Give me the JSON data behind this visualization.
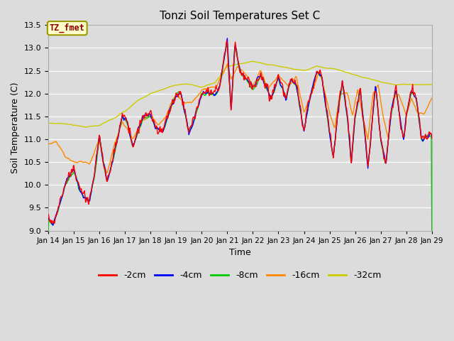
{
  "title": "Tonzi Soil Temperatures Set C",
  "xlabel": "Time",
  "ylabel": "Soil Temperature (C)",
  "ylim": [
    9.0,
    13.5
  ],
  "annotation_text": "TZ_fmet",
  "annotation_color": "#8B0000",
  "annotation_bg": "#FFFFCC",
  "annotation_border": "#999900",
  "xtick_labels": [
    "Jan 14",
    "Jan 15",
    "Jan 16",
    "Jan 17",
    "Jan 18",
    "Jan 19",
    "Jan 20",
    "Jan 21",
    "Jan 22",
    "Jan 23",
    "Jan 24",
    "Jan 25",
    "Jan 26",
    "Jan 27",
    "Jan 28",
    "Jan 29"
  ],
  "series_labels": [
    "-2cm",
    "-4cm",
    "-8cm",
    "-16cm",
    "-32cm"
  ],
  "series_colors": [
    "#FF0000",
    "#0000FF",
    "#00CC00",
    "#FF8800",
    "#CCCC00"
  ],
  "bg_color": "#DCDCDC",
  "grid_color": "#FFFFFF",
  "n_points": 721
}
